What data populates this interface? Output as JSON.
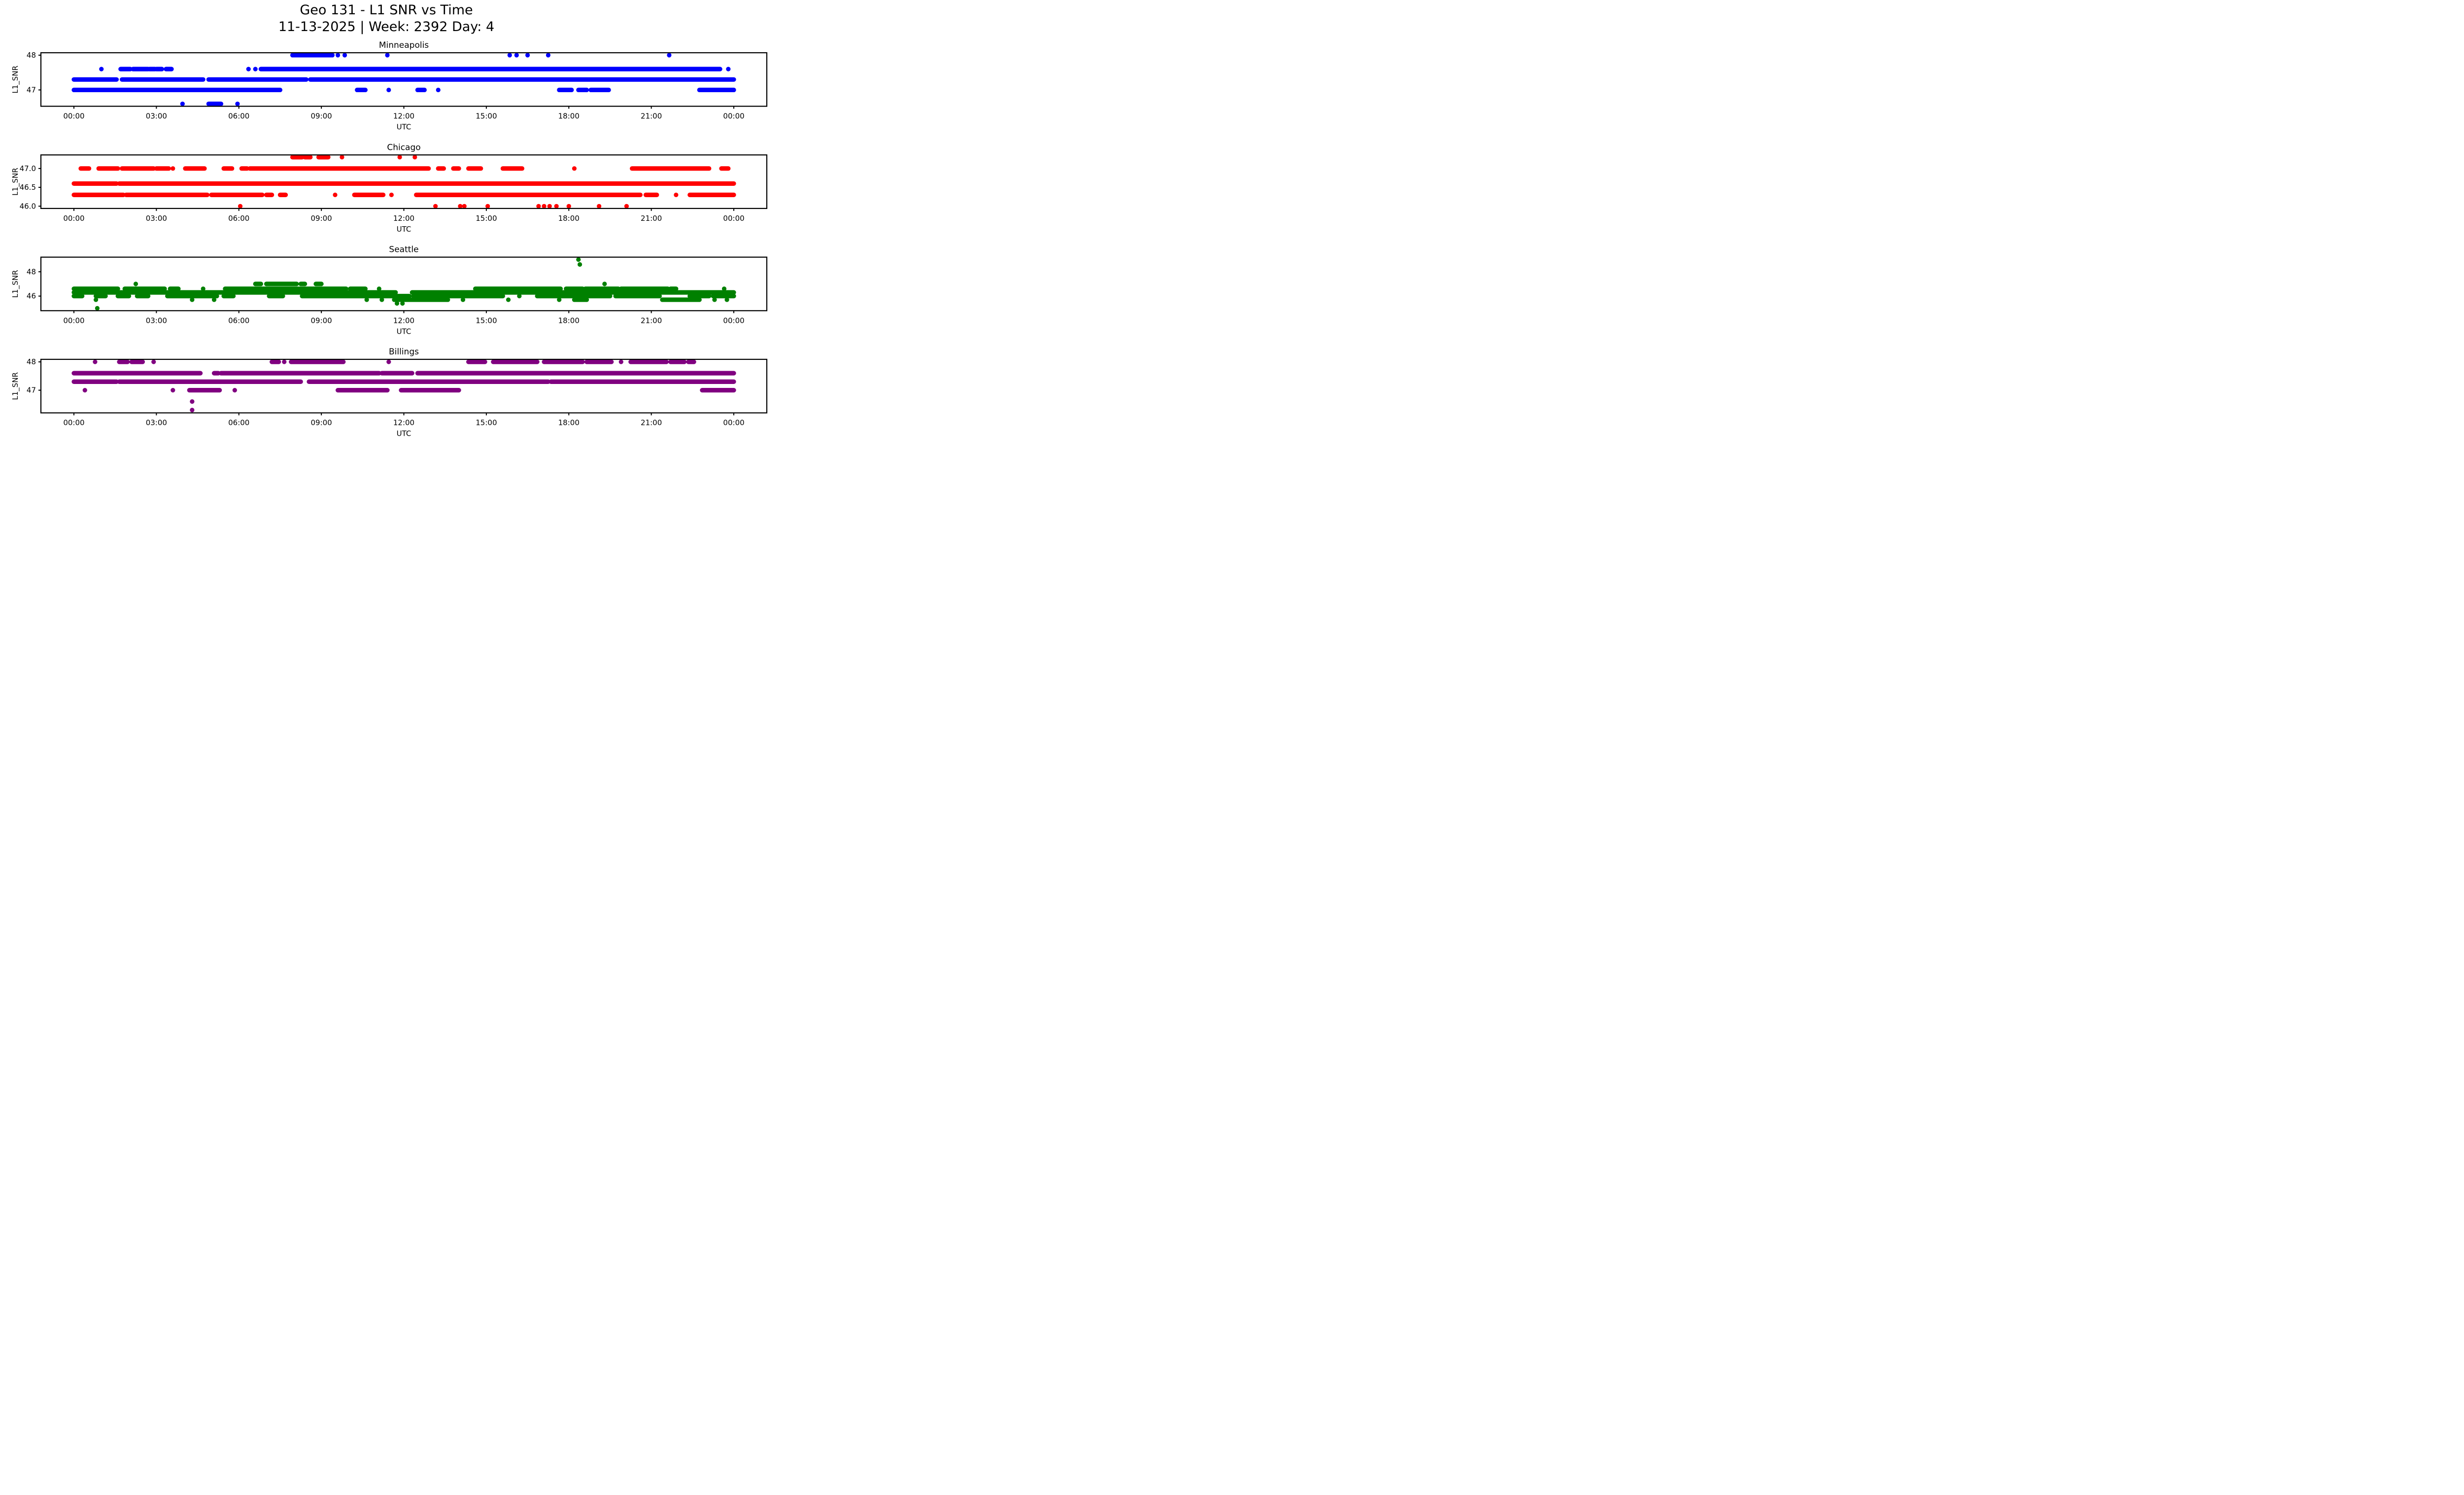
{
  "figure": {
    "suptitle_line1": "Geo 131 - L1 SNR vs Time",
    "suptitle_line2": "11-13-2025 | Week: 2392 Day: 4",
    "background": "#ffffff",
    "x_axis_label": "UTC",
    "y_axis_label": "L1_SNR"
  },
  "chart_data": [
    {
      "type": "scatter",
      "title": "Minneapolis",
      "color": "#0000ff",
      "xlabel": "UTC",
      "ylabel": "L1_SNR",
      "xlim": [
        -1.2,
        25.2
      ],
      "ylim": [
        46.53,
        48.07
      ],
      "xticks": {
        "values": [
          0,
          3,
          6,
          9,
          12,
          15,
          18,
          21,
          24
        ],
        "labels": [
          "00:00",
          "03:00",
          "06:00",
          "09:00",
          "12:00",
          "15:00",
          "18:00",
          "21:00",
          "00:00"
        ]
      },
      "yticks": {
        "values": [
          48,
          47
        ],
        "labels": [
          "48",
          "47"
        ]
      },
      "bands": [
        {
          "y": 48.0,
          "segments": [
            [
              7.95,
              9.4
            ]
          ]
        },
        {
          "y": 47.6,
          "segments": [
            [
              1.7,
              2.05
            ],
            [
              2.15,
              2.7
            ],
            [
              2.75,
              2.95
            ],
            [
              3.0,
              3.2
            ],
            [
              3.35,
              3.55
            ],
            [
              6.8,
              23.5
            ]
          ]
        },
        {
          "y": 47.3,
          "segments": [
            [
              0,
              1.55
            ],
            [
              1.75,
              4.7
            ],
            [
              4.9,
              8.45
            ],
            [
              8.6,
              24.0
            ]
          ]
        },
        {
          "y": 47.0,
          "segments": [
            [
              0,
              7.5
            ],
            [
              10.3,
              10.6
            ],
            [
              12.5,
              12.75
            ],
            [
              17.65,
              18.1
            ],
            [
              18.35,
              18.65
            ],
            [
              18.8,
              19.45
            ],
            [
              22.75,
              24.0
            ]
          ]
        },
        {
          "y": 46.6,
          "segments": [
            [
              4.9,
              5.35
            ]
          ]
        }
      ],
      "points": [
        [
          9.6,
          48
        ],
        [
          9.85,
          48
        ],
        [
          11.4,
          48
        ],
        [
          15.85,
          48
        ],
        [
          16.1,
          48
        ],
        [
          16.5,
          48
        ],
        [
          17.25,
          48
        ],
        [
          21.65,
          48
        ],
        [
          1.0,
          47.6
        ],
        [
          6.35,
          47.6
        ],
        [
          6.6,
          47.6
        ],
        [
          23.8,
          47.6
        ],
        [
          11.45,
          47.0
        ],
        [
          13.25,
          47.0
        ],
        [
          3.95,
          46.6
        ],
        [
          5.95,
          46.6
        ]
      ]
    },
    {
      "type": "scatter",
      "title": "Chicago",
      "color": "#ff0000",
      "xlabel": "UTC",
      "ylabel": "L1_SNR",
      "xlim": [
        -1.2,
        25.2
      ],
      "ylim": [
        45.94,
        47.36
      ],
      "xticks": {
        "values": [
          0,
          3,
          6,
          9,
          12,
          15,
          18,
          21,
          24
        ],
        "labels": [
          "00:00",
          "03:00",
          "06:00",
          "09:00",
          "12:00",
          "15:00",
          "18:00",
          "21:00",
          "00:00"
        ]
      },
      "yticks": {
        "values": [
          47.0,
          46.5,
          46.0
        ],
        "labels": [
          "47.0",
          "46.5",
          "46.0"
        ]
      },
      "bands": [
        {
          "y": 47.3,
          "segments": [
            [
              7.95,
              8.3
            ],
            [
              8.4,
              8.6
            ],
            [
              8.9,
              9.25
            ]
          ]
        },
        {
          "y": 47.0,
          "segments": [
            [
              0.25,
              0.55
            ],
            [
              0.9,
              1.6
            ],
            [
              1.75,
              2.9
            ],
            [
              3.0,
              3.45
            ],
            [
              4.05,
              4.75
            ],
            [
              5.45,
              5.75
            ],
            [
              6.1,
              6.3
            ],
            [
              6.4,
              12.9
            ],
            [
              13.25,
              13.45
            ],
            [
              13.8,
              14.0
            ],
            [
              14.35,
              14.8
            ],
            [
              15.6,
              16.3
            ],
            [
              20.3,
              23.1
            ],
            [
              23.55,
              23.8
            ]
          ]
        },
        {
          "y": 46.6,
          "segments": [
            [
              0,
              1.55
            ],
            [
              1.65,
              24.0
            ]
          ]
        },
        {
          "y": 46.3,
          "segments": [
            [
              0,
              1.8
            ],
            [
              1.9,
              4.85
            ],
            [
              5.0,
              6.85
            ],
            [
              7.0,
              7.2
            ],
            [
              7.5,
              7.7
            ],
            [
              10.2,
              11.25
            ],
            [
              12.45,
              20.6
            ],
            [
              20.8,
              21.2
            ],
            [
              22.4,
              24.0
            ]
          ]
        }
      ],
      "points": [
        [
          9.75,
          47.3
        ],
        [
          11.85,
          47.3
        ],
        [
          12.4,
          47.3
        ],
        [
          3.6,
          47.0
        ],
        [
          18.2,
          47.0
        ],
        [
          9.5,
          46.3
        ],
        [
          11.55,
          46.3
        ],
        [
          21.9,
          46.3
        ],
        [
          6.05,
          46.0
        ],
        [
          13.15,
          46.0
        ],
        [
          14.05,
          46.0
        ],
        [
          14.2,
          46.0
        ],
        [
          15.05,
          46.0
        ],
        [
          16.9,
          46.0
        ],
        [
          17.1,
          46.0
        ],
        [
          17.3,
          46.0
        ],
        [
          17.55,
          46.0
        ],
        [
          18.0,
          46.0
        ],
        [
          19.1,
          46.0
        ],
        [
          20.1,
          46.0
        ]
      ]
    },
    {
      "type": "scatter",
      "title": "Seattle",
      "color": "#008000",
      "xlabel": "UTC",
      "ylabel": "L1_SNR",
      "xlim": [
        -1.2,
        25.2
      ],
      "ylim": [
        44.8,
        49.2
      ],
      "xticks": {
        "values": [
          0,
          3,
          6,
          9,
          12,
          15,
          18,
          21,
          24
        ],
        "labels": [
          "00:00",
          "03:00",
          "06:00",
          "09:00",
          "12:00",
          "15:00",
          "18:00",
          "21:00",
          "00:00"
        ]
      },
      "yticks": {
        "values": [
          48,
          46
        ],
        "labels": [
          "48",
          "46"
        ]
      },
      "bands": [
        {
          "y": 47.0,
          "segments": [
            [
              6.6,
              6.8
            ],
            [
              7.0,
              8.1
            ],
            [
              8.25,
              8.4
            ],
            [
              8.8,
              9.0
            ]
          ]
        },
        {
          "y": 46.6,
          "segments": [
            [
              0,
              1.6
            ],
            [
              1.85,
              3.3
            ],
            [
              3.5,
              3.8
            ],
            [
              5.5,
              9.9
            ],
            [
              10.05,
              10.6
            ],
            [
              14.6,
              17.7
            ],
            [
              17.9,
              18.5
            ],
            [
              18.6,
              19.8
            ],
            [
              19.9,
              21.6
            ],
            [
              21.7,
              21.9
            ]
          ]
        },
        {
          "y": 46.3,
          "segments": [
            [
              0,
              11.7
            ],
            [
              12.3,
              24.0
            ]
          ]
        },
        {
          "y": 46.0,
          "segments": [
            [
              0,
              0.3
            ],
            [
              0.8,
              1.15
            ],
            [
              1.6,
              2.0
            ],
            [
              2.3,
              2.7
            ],
            [
              3.4,
              5.2
            ],
            [
              5.45,
              5.8
            ],
            [
              7.1,
              7.6
            ],
            [
              8.3,
              12.2
            ],
            [
              12.35,
              15.6
            ],
            [
              16.85,
              19.5
            ],
            [
              19.7,
              21.3
            ],
            [
              22.4,
              23.1
            ],
            [
              23.25,
              24.0
            ]
          ]
        },
        {
          "y": 45.7,
          "segments": [
            [
              11.65,
              13.6
            ],
            [
              18.2,
              18.65
            ],
            [
              21.4,
              22.75
            ]
          ]
        }
      ],
      "points": [
        [
          18.35,
          49.0
        ],
        [
          18.4,
          48.6
        ],
        [
          2.25,
          47.0
        ],
        [
          19.3,
          47.0
        ],
        [
          4.7,
          46.6
        ],
        [
          11.1,
          46.6
        ],
        [
          23.65,
          46.6
        ],
        [
          16.2,
          46.0
        ],
        [
          0.8,
          45.7
        ],
        [
          4.3,
          45.7
        ],
        [
          5.1,
          45.7
        ],
        [
          10.65,
          45.7
        ],
        [
          11.2,
          45.7
        ],
        [
          14.15,
          45.7
        ],
        [
          15.8,
          45.7
        ],
        [
          17.65,
          45.7
        ],
        [
          23.3,
          45.7
        ],
        [
          23.75,
          45.7
        ],
        [
          11.75,
          45.4
        ],
        [
          11.95,
          45.4
        ],
        [
          0.85,
          45.0
        ]
      ]
    },
    {
      "type": "scatter",
      "title": "Billings",
      "color": "#800080",
      "xlabel": "UTC",
      "ylabel": "L1_SNR",
      "xlim": [
        -1.2,
        25.2
      ],
      "ylim": [
        46.2,
        48.09
      ],
      "xticks": {
        "values": [
          0,
          3,
          6,
          9,
          12,
          15,
          18,
          21,
          24
        ],
        "labels": [
          "00:00",
          "03:00",
          "06:00",
          "09:00",
          "12:00",
          "15:00",
          "18:00",
          "21:00",
          "00:00"
        ]
      },
      "yticks": {
        "values": [
          48,
          47
        ],
        "labels": [
          "48",
          "47"
        ]
      },
      "bands": [
        {
          "y": 48.0,
          "segments": [
            [
              1.65,
              1.95
            ],
            [
              2.1,
              2.5
            ],
            [
              7.2,
              7.45
            ],
            [
              7.9,
              9.8
            ],
            [
              14.35,
              14.95
            ],
            [
              15.25,
              16.85
            ],
            [
              17.1,
              18.5
            ],
            [
              18.65,
              19.55
            ],
            [
              20.25,
              21.55
            ],
            [
              21.7,
              22.2
            ],
            [
              22.35,
              22.55
            ]
          ]
        },
        {
          "y": 47.6,
          "segments": [
            [
              0,
              4.6
            ],
            [
              5.1,
              5.25
            ],
            [
              5.35,
              11.1
            ],
            [
              11.2,
              12.3
            ],
            [
              12.5,
              24.0
            ]
          ]
        },
        {
          "y": 47.3,
          "segments": [
            [
              0,
              1.55
            ],
            [
              1.65,
              8.25
            ],
            [
              8.55,
              17.25
            ],
            [
              17.35,
              24.0
            ]
          ]
        },
        {
          "y": 47.0,
          "segments": [
            [
              4.2,
              5.3
            ],
            [
              9.6,
              11.4
            ],
            [
              11.9,
              14.0
            ],
            [
              22.85,
              24.0
            ]
          ]
        }
      ],
      "points": [
        [
          0.77,
          48
        ],
        [
          2.9,
          48
        ],
        [
          7.65,
          48
        ],
        [
          11.45,
          48
        ],
        [
          19.9,
          48
        ],
        [
          0.4,
          47.0
        ],
        [
          3.6,
          47.0
        ],
        [
          5.85,
          47.0
        ],
        [
          4.3,
          46.6
        ],
        [
          4.3,
          46.3
        ]
      ]
    }
  ]
}
